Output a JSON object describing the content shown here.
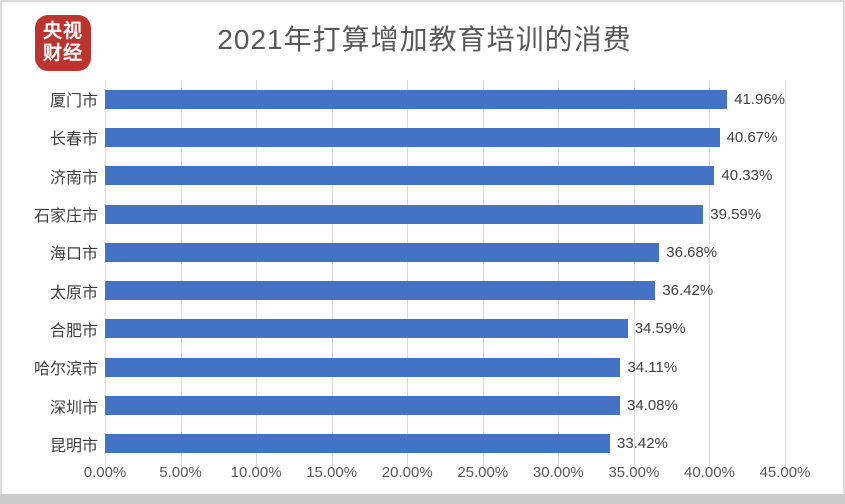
{
  "logo": {
    "line1": "央视",
    "line2": "财经"
  },
  "title": "2021年打算增加教育培训的消费",
  "colors": {
    "bar": "#4472c4",
    "grid": "#d9d9d9",
    "title_text": "#595959",
    "label_text": "#3f3f3f",
    "logo_red": "#ba3530",
    "bottom_band": "#cbcbcb"
  },
  "chart_data": {
    "type": "bar",
    "orientation": "horizontal",
    "title": "2021年打算增加教育培训的消费",
    "categories": [
      "厦门市",
      "长春市",
      "济南市",
      "石家庄市",
      "海口市",
      "太原市",
      "合肥市",
      "哈尔滨市",
      "深圳市",
      "昆明市"
    ],
    "values": [
      41.96,
      40.67,
      40.33,
      39.59,
      36.68,
      36.42,
      34.59,
      34.11,
      34.08,
      33.42
    ],
    "value_labels": [
      "41.96%",
      "40.67%",
      "40.33%",
      "39.59%",
      "36.68%",
      "36.42%",
      "34.59%",
      "34.11%",
      "34.08%",
      "33.42%"
    ],
    "xlabel": "",
    "ylabel": "",
    "xlim": [
      0,
      45
    ],
    "x_ticks": [
      "0.00%",
      "5.00%",
      "10.00%",
      "15.00%",
      "20.00%",
      "25.00%",
      "30.00%",
      "35.00%",
      "40.00%",
      "45.00%"
    ],
    "grid": "vertical-only",
    "legend": "none",
    "bar_color": "#4472c4"
  }
}
